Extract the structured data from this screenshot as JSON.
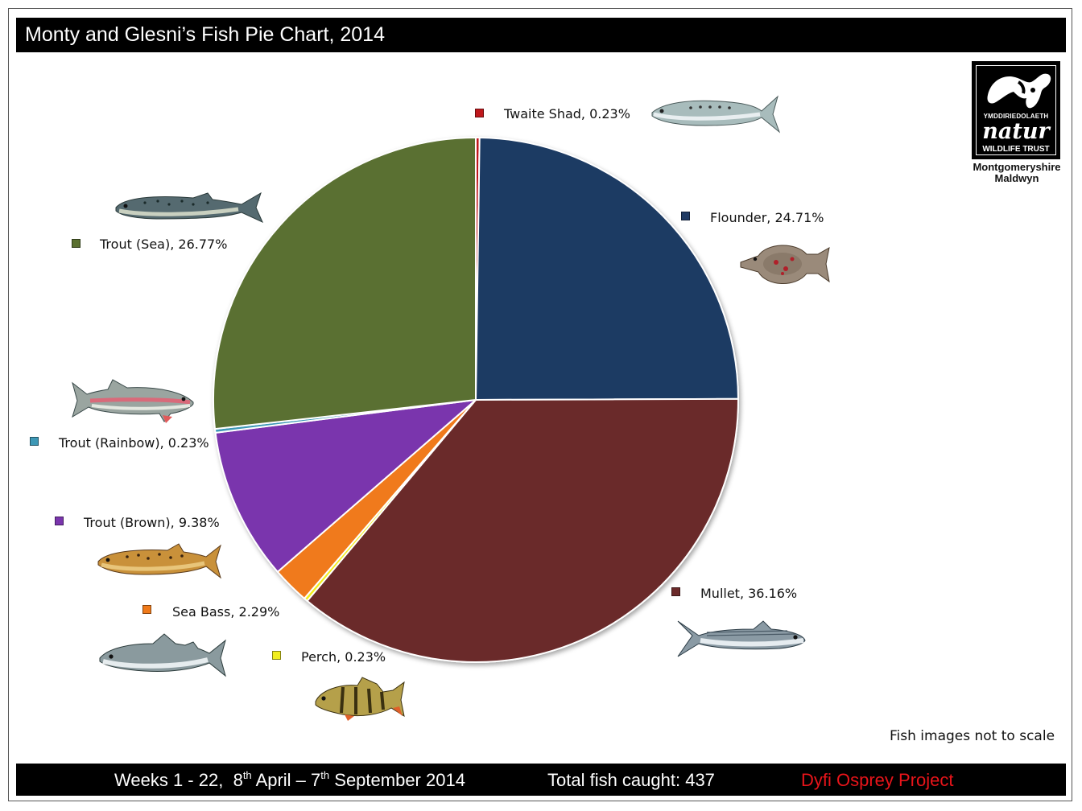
{
  "header": {
    "title": "Monty and Glesni’s Fish Pie Chart, 2014"
  },
  "footer": {
    "weeks": "Weeks 1 - 22,",
    "date_start_day": "8",
    "date_start_suffix": "th",
    "date_start_rest": "April –",
    "date_end_day": "7",
    "date_end_suffix": "th",
    "date_end_rest": "September 2014",
    "total": "Total fish caught:  437",
    "project": "Dyfi Osprey Project",
    "project_color": "#e8141a"
  },
  "note": "Fish images not to scale",
  "logo": {
    "line1": "YMDDIRIEDOLAETH",
    "line2": "natur",
    "line3": "WILDLIFE TRUST",
    "sub1": "Montgomeryshire",
    "sub2": "Maldwyn"
  },
  "chart_data": {
    "type": "pie",
    "title": "Monty and Glesni’s Fish Pie Chart, 2014",
    "start_angle": "12 o'clock, clockwise",
    "slices": [
      {
        "name": "Twaite Shad",
        "value": 0.23,
        "label": "Twaite Shad, 0.23%",
        "color": "#c0181c",
        "icon": "twaite-shad-fish-icon"
      },
      {
        "name": "Flounder",
        "value": 24.71,
        "label": "Flounder, 24.71%",
        "color": "#1f3a63",
        "icon": "flounder-fish-icon"
      },
      {
        "name": "Mullet",
        "value": 36.16,
        "label": "Mullet, 36.16%",
        "color": "#6b2a2a",
        "icon": "mullet-fish-icon"
      },
      {
        "name": "Perch",
        "value": 0.23,
        "label": "Perch, 0.23%",
        "color": "#f2ee1e",
        "icon": "perch-fish-icon"
      },
      {
        "name": "Sea Bass",
        "value": 2.29,
        "label": "Sea Bass, 2.29%",
        "color": "#f07a1a",
        "icon": "sea-bass-fish-icon"
      },
      {
        "name": "Trout (Brown)",
        "value": 9.38,
        "label": "Trout (Brown), 9.38%",
        "color": "#7a35ad",
        "icon": "brown-trout-fish-icon"
      },
      {
        "name": "Trout (Rainbow)",
        "value": 0.23,
        "label": "Trout (Rainbow), 0.23%",
        "color": "#3e98b6",
        "icon": "rainbow-trout-fish-icon"
      },
      {
        "name": "Trout (Sea)",
        "value": 26.77,
        "label": "Trout (Sea), 26.77%",
        "color": "#5a7030",
        "icon": "sea-trout-fish-icon"
      }
    ]
  }
}
